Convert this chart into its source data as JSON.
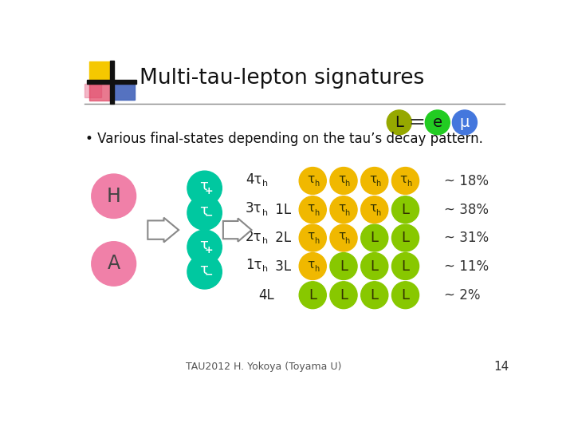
{
  "title": "Multi-tau-lepton signatures",
  "subtitle": "• Various final-states depending on the tau’s decay pattern.",
  "footer": "TAU2012 H. Yokoya (Toyama U)",
  "page_num": "14",
  "bg_color": "#ffffff",
  "pink_color": "#F080A8",
  "teal_color": "#00C8A0",
  "gold_color": "#F0B800",
  "green_color": "#88C800",
  "L_circle_color": "#96A800",
  "e_circle_color": "#22CC22",
  "mu_circle_color": "#4477DD",
  "rows": [
    {
      "tau_count": 4,
      "l_count": 0,
      "pct": "~ 18%"
    },
    {
      "tau_count": 3,
      "l_count": 1,
      "pct": "~ 38%"
    },
    {
      "tau_count": 2,
      "l_count": 2,
      "pct": "~ 31%"
    },
    {
      "tau_count": 1,
      "l_count": 3,
      "pct": "~ 11%"
    },
    {
      "tau_count": 0,
      "l_count": 4,
      "pct": "~ 2%"
    }
  ],
  "row_labels": [
    "4τh",
    "3τh 1L",
    "2τh 2L",
    "1τh 3L",
    "4L"
  ]
}
